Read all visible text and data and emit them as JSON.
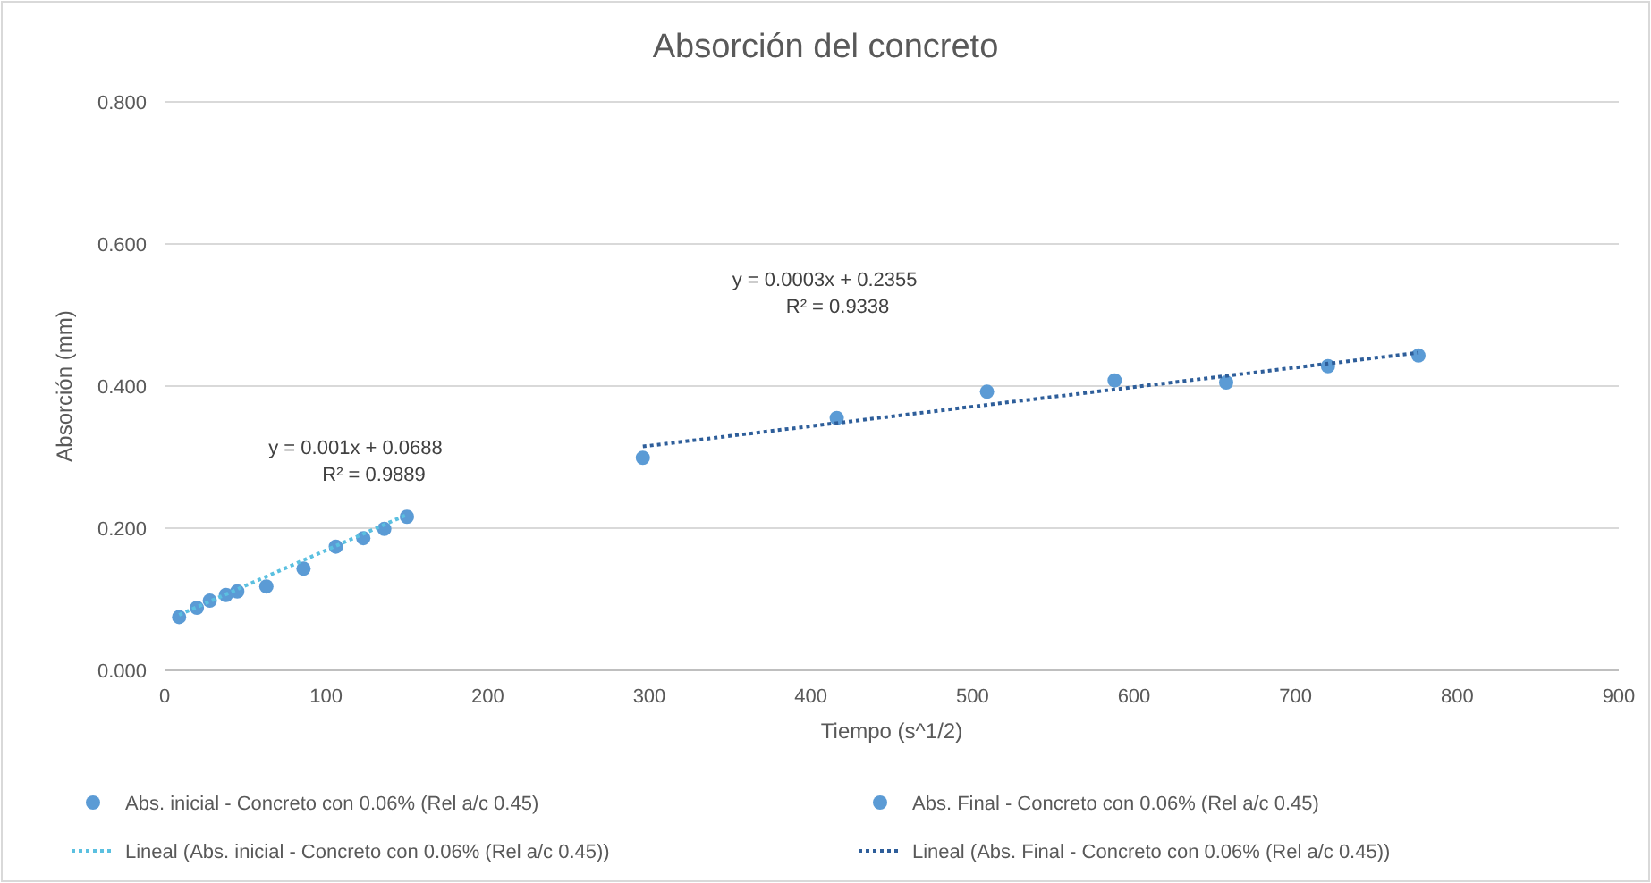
{
  "chart_data": {
    "type": "scatter",
    "title": "Absorción del concreto",
    "xlabel": "Tiempo (s^1/2)",
    "ylabel": "Absorción (mm)",
    "xlim": [
      0,
      900
    ],
    "xticks": [
      0,
      100,
      200,
      300,
      400,
      500,
      600,
      700,
      800,
      900
    ],
    "ylim": [
      0,
      0.8
    ],
    "yticks": [
      {
        "value": 0,
        "label": "0.000"
      },
      {
        "value": 0.2,
        "label": "0.200"
      },
      {
        "value": 0.4,
        "label": "0.400"
      },
      {
        "value": 0.6,
        "label": "0.600"
      },
      {
        "value": 0.8,
        "label": "0.800"
      }
    ],
    "grid": "y",
    "legend": "bottom",
    "series": [
      {
        "name": "Abs. inicial - Concreto con 0.06% (Rel a/c 0.45)",
        "marker": "circle",
        "color": "#5b9bd5",
        "x": [
          9,
          20,
          28,
          38,
          45,
          63,
          86,
          106,
          123,
          136,
          150
        ],
        "values": [
          0.075,
          0.088,
          0.098,
          0.106,
          0.111,
          0.118,
          0.143,
          0.174,
          0.186,
          0.199,
          0.216
        ]
      },
      {
        "name": "Lineal (Abs. inicial - Concreto con 0.06% (Rel a/c 0.45))",
        "type": "line",
        "line_style": "dotted",
        "color": "#5bc0e0",
        "x": [
          9,
          150
        ],
        "values": [
          0.078,
          0.219
        ]
      },
      {
        "name": "Abs. Final - Concreto con 0.06% (Rel a/c 0.45)",
        "marker": "circle",
        "color": "#5b9bd5",
        "x": [
          296,
          416,
          509,
          588,
          657,
          720,
          776
        ],
        "values": [
          0.299,
          0.355,
          0.392,
          0.408,
          0.405,
          0.428,
          0.443
        ]
      },
      {
        "name": "Lineal (Abs. Final - Concreto con 0.06% (Rel a/c 0.45))",
        "type": "line",
        "line_style": "dotted",
        "color": "#2e5e9a",
        "x": [
          296,
          776
        ],
        "values": [
          0.315,
          0.447
        ]
      }
    ],
    "annotations": [
      "y = 0.001x + 0.0688",
      "R² = 0.9889",
      "y = 0.0003x + 0.2355",
      "R² = 0.9338"
    ]
  }
}
